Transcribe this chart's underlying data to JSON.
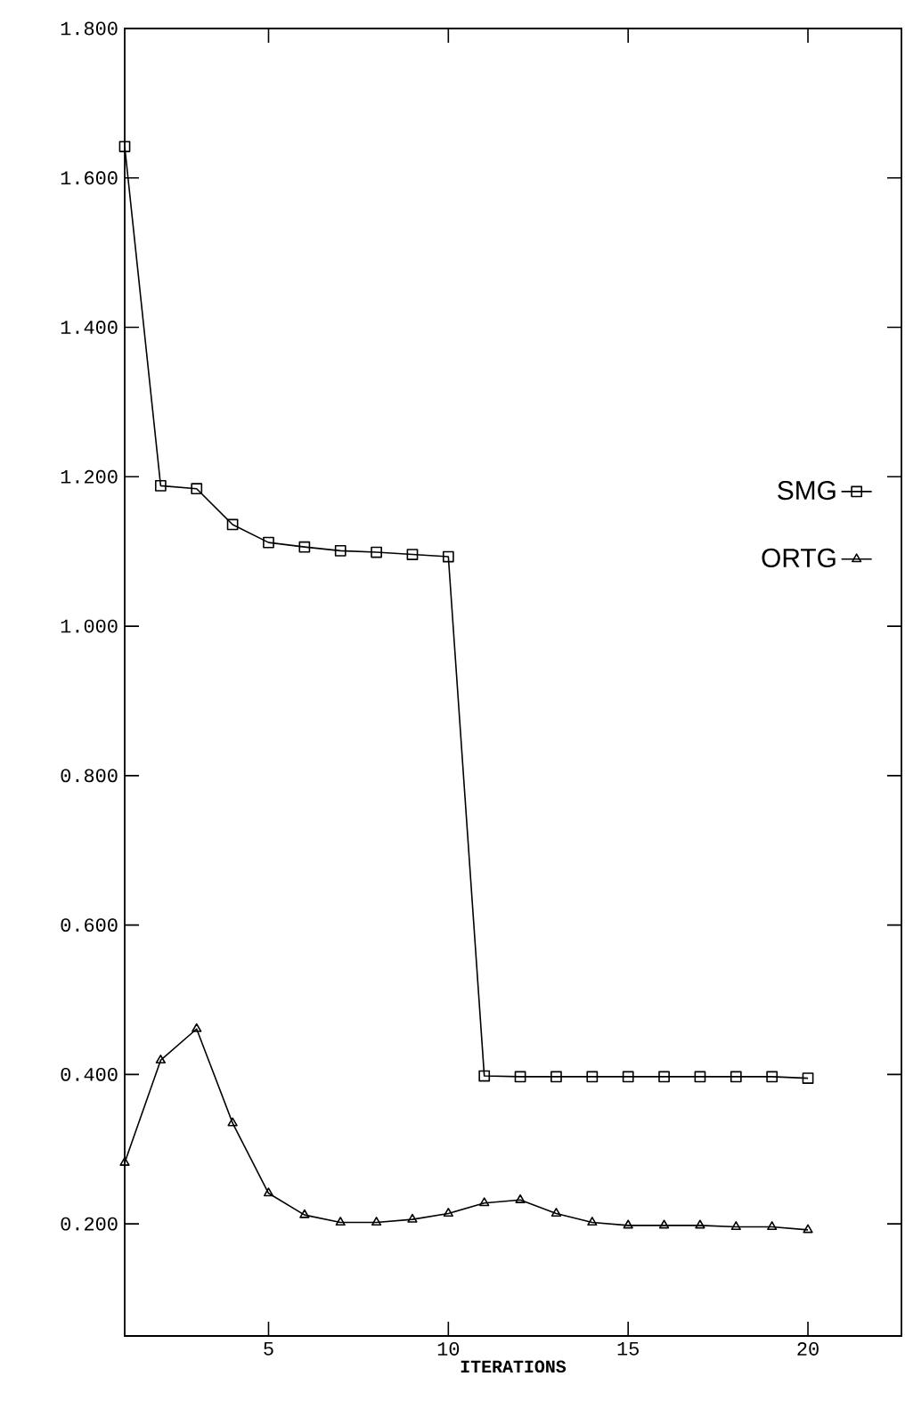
{
  "chart_data": {
    "type": "line",
    "xlabel": "ITERATIONS",
    "x": [
      1,
      2,
      3,
      4,
      5,
      6,
      7,
      8,
      9,
      10,
      11,
      12,
      13,
      14,
      15,
      16,
      17,
      18,
      19,
      20
    ],
    "series": [
      {
        "name": "SMG",
        "color": "#000000",
        "marker": "square",
        "values": [
          1.642,
          1.188,
          1.184,
          1.136,
          1.112,
          1.106,
          1.101,
          1.099,
          1.096,
          1.093,
          0.398,
          0.397,
          0.397,
          0.397,
          0.397,
          0.397,
          0.397,
          0.397,
          0.397,
          0.395
        ]
      },
      {
        "name": "ORTG",
        "color": "#000000",
        "marker": "triangle",
        "values": [
          0.282,
          0.419,
          0.461,
          0.335,
          0.241,
          0.212,
          0.202,
          0.202,
          0.206,
          0.214,
          0.228,
          0.232,
          0.214,
          0.202,
          0.198,
          0.198,
          0.198,
          0.196,
          0.196,
          0.192
        ]
      }
    ],
    "xlim": [
      1,
      22.6
    ],
    "xticks": [
      5,
      10,
      15,
      20
    ],
    "ylim": [
      0.05,
      1.8
    ],
    "yticks": [
      {
        "value": 0.2,
        "label": "0.200"
      },
      {
        "value": 0.4,
        "label": "0.400"
      },
      {
        "value": 0.6,
        "label": "0.600"
      },
      {
        "value": 0.8,
        "label": "0.800"
      },
      {
        "value": 1.0,
        "label": "1.000"
      },
      {
        "value": 1.2,
        "label": "1.200"
      },
      {
        "value": 1.4,
        "label": "1.400"
      },
      {
        "value": 1.6,
        "label": "1.600"
      },
      {
        "value": 1.8,
        "label": "1.800"
      }
    ],
    "legend": "right",
    "line_style": "solid",
    "grid": false
  }
}
